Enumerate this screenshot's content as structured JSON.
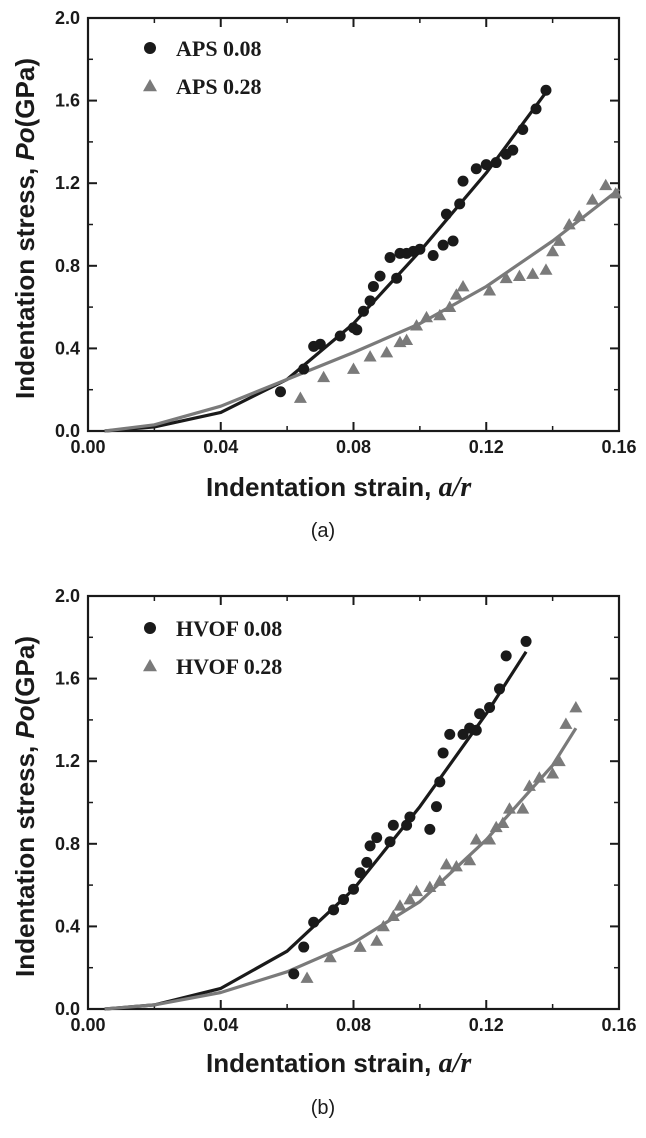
{
  "chart_data": [
    {
      "type": "scatter",
      "panel_label": "(a)",
      "xlabel": "Indentation strain,",
      "xlabel_var": "a/r",
      "ylabel": "Indentation stress,",
      "ylabel_var": "Po",
      "ylabel_unit": "(GPa)",
      "xlim": [
        0,
        0.16
      ],
      "ylim": [
        0,
        2.0
      ],
      "xticks": [
        "0.00",
        "0.04",
        "0.08",
        "0.12",
        "0.16"
      ],
      "yticks": [
        "0.0",
        "0.4",
        "0.8",
        "1.2",
        "1.6",
        "2.0"
      ],
      "legend_position": "top-left",
      "series": [
        {
          "name": "APS 0.08",
          "marker": "circle",
          "color": "#1a1a1a",
          "points": [
            [
              0.058,
              0.19
            ],
            [
              0.065,
              0.3
            ],
            [
              0.068,
              0.41
            ],
            [
              0.07,
              0.42
            ],
            [
              0.076,
              0.46
            ],
            [
              0.08,
              0.5
            ],
            [
              0.081,
              0.49
            ],
            [
              0.083,
              0.58
            ],
            [
              0.085,
              0.63
            ],
            [
              0.086,
              0.7
            ],
            [
              0.088,
              0.75
            ],
            [
              0.091,
              0.84
            ],
            [
              0.093,
              0.74
            ],
            [
              0.094,
              0.86
            ],
            [
              0.096,
              0.86
            ],
            [
              0.098,
              0.87
            ],
            [
              0.1,
              0.88
            ],
            [
              0.104,
              0.85
            ],
            [
              0.107,
              0.9
            ],
            [
              0.108,
              1.05
            ],
            [
              0.11,
              0.92
            ],
            [
              0.112,
              1.1
            ],
            [
              0.113,
              1.21
            ],
            [
              0.117,
              1.27
            ],
            [
              0.12,
              1.29
            ],
            [
              0.123,
              1.3
            ],
            [
              0.126,
              1.34
            ],
            [
              0.128,
              1.36
            ],
            [
              0.131,
              1.46
            ],
            [
              0.135,
              1.56
            ],
            [
              0.138,
              1.65
            ]
          ],
          "fit": [
            [
              0.005,
              0.0
            ],
            [
              0.02,
              0.02
            ],
            [
              0.04,
              0.09
            ],
            [
              0.06,
              0.25
            ],
            [
              0.08,
              0.52
            ],
            [
              0.1,
              0.87
            ],
            [
              0.12,
              1.25
            ],
            [
              0.138,
              1.64
            ]
          ]
        },
        {
          "name": "APS 0.28",
          "marker": "triangle",
          "color": "#7a7a7a",
          "points": [
            [
              0.064,
              0.16
            ],
            [
              0.071,
              0.26
            ],
            [
              0.08,
              0.3
            ],
            [
              0.085,
              0.36
            ],
            [
              0.09,
              0.38
            ],
            [
              0.094,
              0.43
            ],
            [
              0.096,
              0.44
            ],
            [
              0.099,
              0.51
            ],
            [
              0.102,
              0.55
            ],
            [
              0.106,
              0.56
            ],
            [
              0.109,
              0.6
            ],
            [
              0.111,
              0.66
            ],
            [
              0.113,
              0.7
            ],
            [
              0.121,
              0.68
            ],
            [
              0.126,
              0.74
            ],
            [
              0.13,
              0.75
            ],
            [
              0.134,
              0.76
            ],
            [
              0.138,
              0.78
            ],
            [
              0.14,
              0.87
            ],
            [
              0.142,
              0.92
            ],
            [
              0.145,
              1.0
            ],
            [
              0.148,
              1.04
            ],
            [
              0.152,
              1.12
            ],
            [
              0.156,
              1.19
            ],
            [
              0.159,
              1.15
            ]
          ],
          "fit": [
            [
              0.005,
              0.0
            ],
            [
              0.02,
              0.03
            ],
            [
              0.04,
              0.12
            ],
            [
              0.06,
              0.25
            ],
            [
              0.08,
              0.38
            ],
            [
              0.1,
              0.52
            ],
            [
              0.12,
              0.7
            ],
            [
              0.14,
              0.92
            ],
            [
              0.16,
              1.17
            ]
          ]
        }
      ]
    },
    {
      "type": "scatter",
      "panel_label": "(b)",
      "xlabel": "Indentation strain,",
      "xlabel_var": "a/r",
      "ylabel": "Indentation stress,",
      "ylabel_var": "Po",
      "ylabel_unit": "(GPa)",
      "xlim": [
        0,
        0.16
      ],
      "ylim": [
        0,
        2.0
      ],
      "xticks": [
        "0.00",
        "0.04",
        "0.08",
        "0.12",
        "0.16"
      ],
      "yticks": [
        "0.0",
        "0.4",
        "0.8",
        "1.2",
        "1.6",
        "2.0"
      ],
      "legend_position": "top-left",
      "series": [
        {
          "name": "HVOF 0.08",
          "marker": "circle",
          "color": "#1a1a1a",
          "points": [
            [
              0.062,
              0.17
            ],
            [
              0.065,
              0.3
            ],
            [
              0.068,
              0.42
            ],
            [
              0.074,
              0.48
            ],
            [
              0.077,
              0.53
            ],
            [
              0.08,
              0.58
            ],
            [
              0.082,
              0.66
            ],
            [
              0.084,
              0.71
            ],
            [
              0.085,
              0.79
            ],
            [
              0.087,
              0.83
            ],
            [
              0.091,
              0.81
            ],
            [
              0.092,
              0.89
            ],
            [
              0.096,
              0.89
            ],
            [
              0.097,
              0.93
            ],
            [
              0.103,
              0.87
            ],
            [
              0.105,
              0.98
            ],
            [
              0.106,
              1.1
            ],
            [
              0.107,
              1.24
            ],
            [
              0.109,
              1.33
            ],
            [
              0.113,
              1.33
            ],
            [
              0.115,
              1.36
            ],
            [
              0.117,
              1.35
            ],
            [
              0.118,
              1.43
            ],
            [
              0.121,
              1.46
            ],
            [
              0.124,
              1.55
            ],
            [
              0.126,
              1.71
            ],
            [
              0.132,
              1.78
            ]
          ],
          "fit": [
            [
              0.005,
              0.0
            ],
            [
              0.02,
              0.02
            ],
            [
              0.04,
              0.1
            ],
            [
              0.06,
              0.28
            ],
            [
              0.08,
              0.58
            ],
            [
              0.1,
              0.98
            ],
            [
              0.12,
              1.43
            ],
            [
              0.132,
              1.73
            ]
          ]
        },
        {
          "name": "HVOF 0.28",
          "marker": "triangle",
          "color": "#7a7a7a",
          "points": [
            [
              0.066,
              0.15
            ],
            [
              0.073,
              0.25
            ],
            [
              0.082,
              0.3
            ],
            [
              0.087,
              0.33
            ],
            [
              0.089,
              0.4
            ],
            [
              0.092,
              0.45
            ],
            [
              0.094,
              0.5
            ],
            [
              0.097,
              0.53
            ],
            [
              0.099,
              0.57
            ],
            [
              0.103,
              0.59
            ],
            [
              0.106,
              0.62
            ],
            [
              0.108,
              0.7
            ],
            [
              0.111,
              0.69
            ],
            [
              0.115,
              0.72
            ],
            [
              0.117,
              0.82
            ],
            [
              0.121,
              0.82
            ],
            [
              0.123,
              0.88
            ],
            [
              0.125,
              0.9
            ],
            [
              0.127,
              0.97
            ],
            [
              0.131,
              0.97
            ],
            [
              0.133,
              1.08
            ],
            [
              0.136,
              1.12
            ],
            [
              0.14,
              1.14
            ],
            [
              0.142,
              1.2
            ],
            [
              0.144,
              1.38
            ],
            [
              0.147,
              1.46
            ]
          ],
          "fit": [
            [
              0.005,
              0.0
            ],
            [
              0.02,
              0.02
            ],
            [
              0.04,
              0.08
            ],
            [
              0.06,
              0.18
            ],
            [
              0.08,
              0.32
            ],
            [
              0.1,
              0.52
            ],
            [
              0.12,
              0.82
            ],
            [
              0.14,
              1.18
            ],
            [
              0.147,
              1.36
            ]
          ]
        }
      ]
    }
  ]
}
